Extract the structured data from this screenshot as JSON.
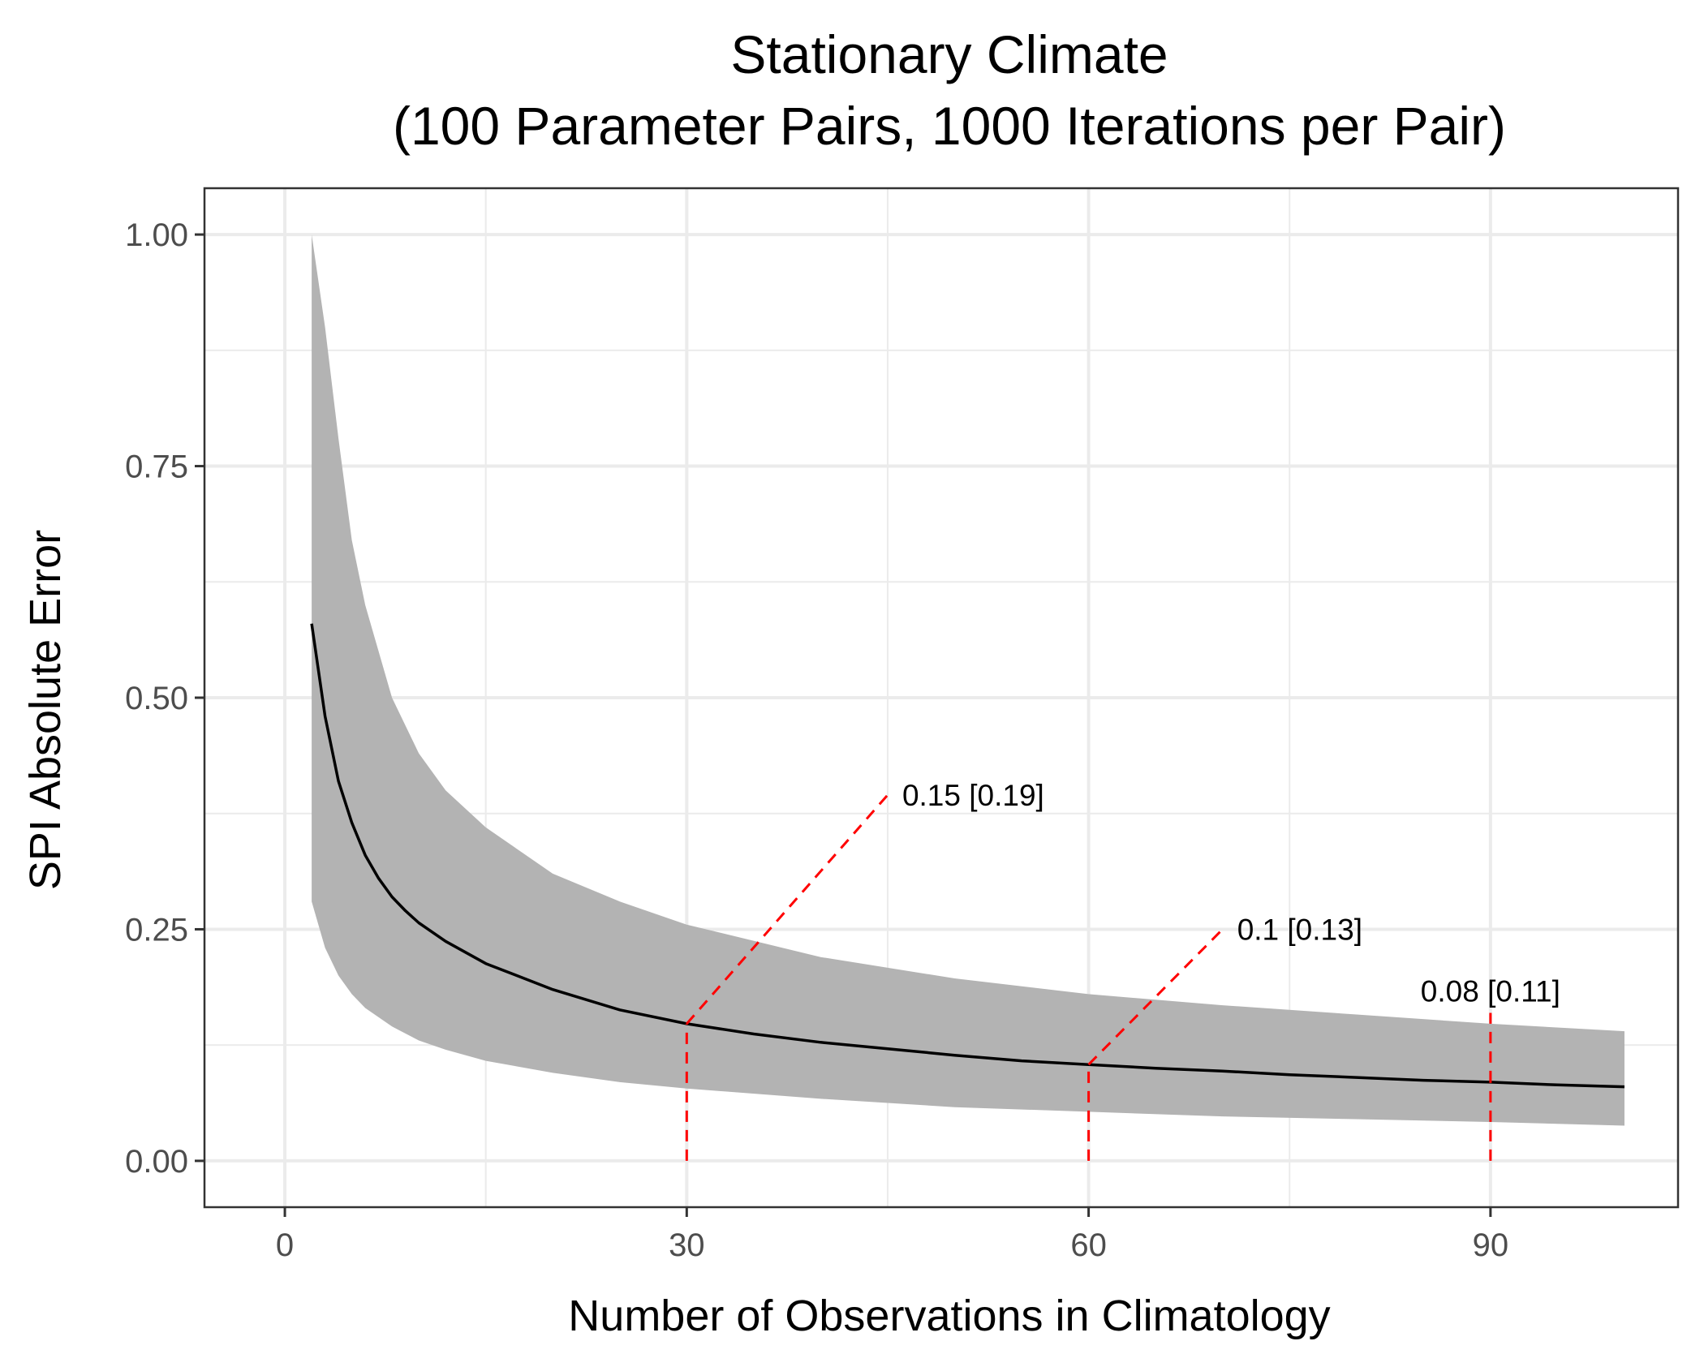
{
  "chart_data": {
    "type": "line",
    "title": "Stationary Climate",
    "subtitle": "(100 Parameter Pairs, 1000 Iterations per Pair)",
    "xlabel": "Number of Observations in Climatology",
    "ylabel": "SPI Absolute Error",
    "xlim": [
      -6,
      104
    ],
    "ylim": [
      -0.05,
      1.05
    ],
    "x_ticks": [
      0,
      30,
      60,
      90
    ],
    "x_tick_labels": [
      "0",
      "30",
      "60",
      "90"
    ],
    "y_ticks": [
      0,
      0.25,
      0.5,
      0.75,
      1
    ],
    "y_tick_labels": [
      "0.00",
      "0.25",
      "0.50",
      "0.75",
      "1.00"
    ],
    "grid": true,
    "band": {
      "x": [
        2,
        3,
        4,
        5,
        6,
        8,
        10,
        12,
        15,
        20,
        25,
        30,
        40,
        50,
        60,
        70,
        80,
        90,
        100
      ],
      "upper": [
        1.0,
        0.9,
        0.78,
        0.67,
        0.6,
        0.5,
        0.44,
        0.4,
        0.36,
        0.31,
        0.28,
        0.255,
        0.22,
        0.197,
        0.18,
        0.168,
        0.158,
        0.148,
        0.14
      ],
      "lower": [
        0.28,
        0.23,
        0.2,
        0.18,
        0.165,
        0.145,
        0.13,
        0.12,
        0.108,
        0.095,
        0.085,
        0.078,
        0.067,
        0.058,
        0.053,
        0.048,
        0.045,
        0.042,
        0.038
      ]
    },
    "series": [
      {
        "x": [
          2,
          3,
          4,
          5,
          6,
          7,
          8,
          9,
          10,
          12,
          15,
          20,
          25,
          30,
          35,
          40,
          45,
          50,
          55,
          60,
          65,
          70,
          75,
          80,
          85,
          90,
          95,
          100
        ],
        "values": [
          0.58,
          0.48,
          0.41,
          0.365,
          0.33,
          0.305,
          0.285,
          0.27,
          0.257,
          0.237,
          0.213,
          0.185,
          0.163,
          0.148,
          0.137,
          0.128,
          0.121,
          0.114,
          0.108,
          0.104,
          0.1,
          0.097,
          0.093,
          0.09,
          0.087,
          0.085,
          0.082,
          0.08
        ]
      }
    ],
    "annotations": [
      {
        "x": 30,
        "y": 0.148,
        "label_x": 45,
        "label_y": 0.395,
        "text": "0.15 [0.19]"
      },
      {
        "x": 60,
        "y": 0.104,
        "label_x": 70,
        "label_y": 0.25,
        "text": "0.1 [0.13]"
      },
      {
        "x": 90,
        "y": 0.085,
        "label_x": 90,
        "label_y": 0.165,
        "text": "0.08 [0.11]"
      }
    ],
    "colors": {
      "band": "#b3b3b3",
      "mean_line": "#000000",
      "annotation": "#ff0000",
      "grid": "#ebebeb",
      "panel_border": "#333333"
    }
  }
}
